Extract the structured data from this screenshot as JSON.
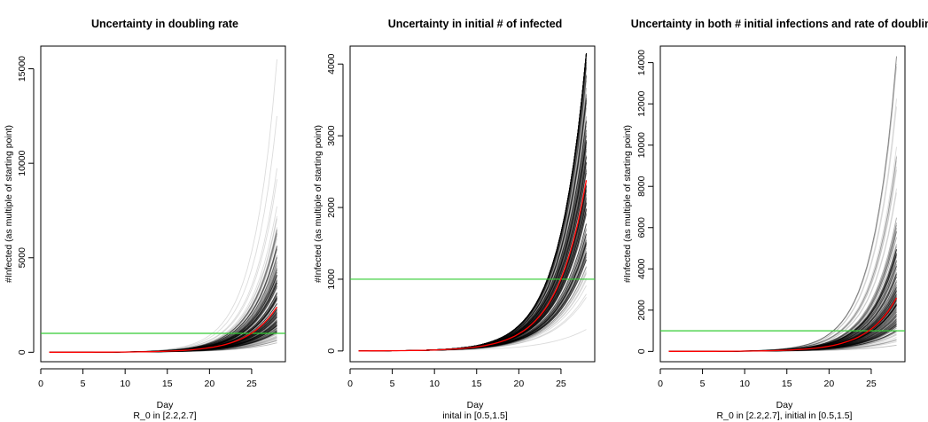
{
  "chart_data": [
    {
      "type": "line",
      "title": "Uncertainty in doubling rate",
      "xlabel": "Day",
      "subxlabel": "R_0 in [2.2,2.7]",
      "ylabel": "#Infected (as multiple of starting point)",
      "xlim": [
        0,
        29
      ],
      "ylim": [
        -500,
        16200
      ],
      "xticks": [
        "0",
        "5",
        "10",
        "15",
        "20",
        "25"
      ],
      "yticks": [
        "0",
        "5000",
        "10000",
        "15000"
      ],
      "ytick_values": [
        0,
        5000,
        10000,
        15000
      ],
      "x": [
        1,
        28
      ],
      "threshold": 1000,
      "mean_final": 2400,
      "band": {
        "low": 500,
        "high": 15500
      },
      "colors": {
        "simulations": "#000000",
        "mean": "#ff0000",
        "threshold": "#33cc33"
      }
    },
    {
      "type": "line",
      "title": "Uncertainty in initial # of infected",
      "xlabel": "Day",
      "subxlabel": "inital in [0.5,1.5]",
      "ylabel": "#Infected (as multiple of starting point)",
      "xlim": [
        0,
        29
      ],
      "ylim": [
        -150,
        4250
      ],
      "xticks": [
        "0",
        "5",
        "10",
        "15",
        "20",
        "25"
      ],
      "yticks": [
        "0",
        "1000",
        "2000",
        "3000",
        "4000"
      ],
      "ytick_values": [
        0,
        1000,
        2000,
        3000,
        4000
      ],
      "x": [
        1,
        28
      ],
      "threshold": 1000,
      "mean_final": 2380,
      "band": {
        "low": 300,
        "high": 4150
      },
      "colors": {
        "simulations": "#000000",
        "mean": "#ff0000",
        "threshold": "#33cc33"
      }
    },
    {
      "type": "line",
      "title": "Uncertainty in both # initial infections and rate of doubling",
      "xlabel": "Day",
      "subxlabel": "R_0 in [2.2,2.7], initial in [0.5,1.5]",
      "ylabel": "#Infected (as multiple of starting point)",
      "xlim": [
        0,
        29
      ],
      "ylim": [
        -500,
        14800
      ],
      "xticks": [
        "0",
        "5",
        "10",
        "15",
        "20",
        "25"
      ],
      "yticks": [
        "0",
        "2000",
        "4000",
        "6000",
        "8000",
        "10000",
        "12000",
        "14000"
      ],
      "ytick_values": [
        0,
        2000,
        4000,
        6000,
        8000,
        10000,
        12000,
        14000
      ],
      "x": [
        1,
        28
      ],
      "threshold": 1000,
      "mean_final": 2600,
      "band": {
        "low": 300,
        "high": 14300
      },
      "colors": {
        "simulations": "#000000",
        "mean": "#ff0000",
        "threshold": "#33cc33"
      }
    }
  ]
}
